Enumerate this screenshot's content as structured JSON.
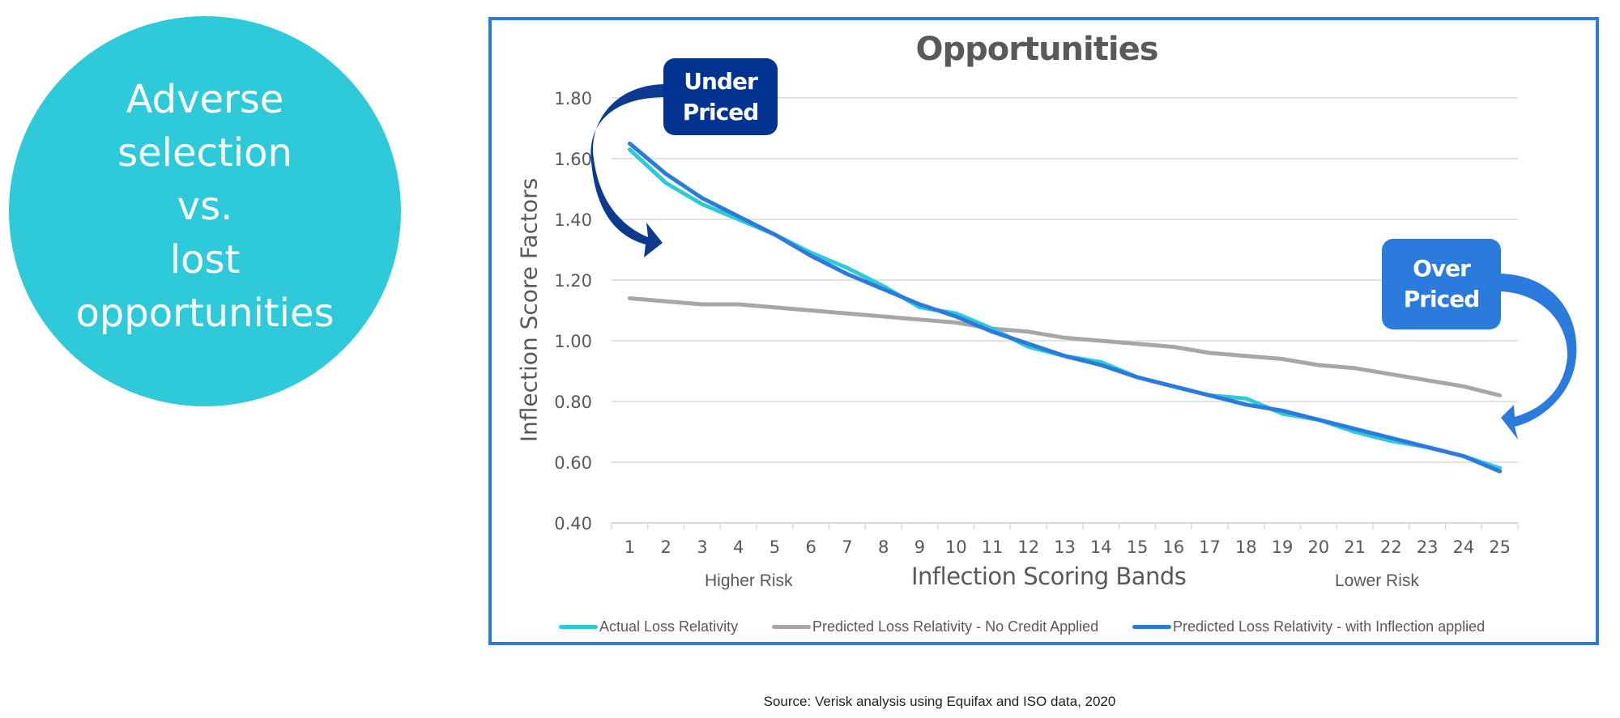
{
  "callout_circle": {
    "lines": [
      "Adverse",
      "selection",
      "vs.",
      "lost",
      "opportunities"
    ],
    "color": "#2ecad9"
  },
  "annotations": {
    "under_priced": [
      "Under",
      "Priced"
    ],
    "over_priced": [
      "Over",
      "Priced"
    ],
    "higher_risk": "Higher Risk",
    "lower_risk": "Lower Risk"
  },
  "source": "Source: Verisk analysis using Equifax and ISO data, 2020",
  "colors": {
    "frame": "#2b7bdd",
    "under_priced": "#013391",
    "over_priced": "#2b7bdd",
    "gridline": "#d9d9d9",
    "text": "#595959"
  },
  "chart_data": {
    "type": "line",
    "title": "Opportunities",
    "xlabel": "Inflection Scoring Bands",
    "ylabel": "Inflection Score Factors",
    "x": [
      1,
      2,
      3,
      4,
      5,
      6,
      7,
      8,
      9,
      10,
      11,
      12,
      13,
      14,
      15,
      16,
      17,
      18,
      19,
      20,
      21,
      22,
      23,
      24,
      25
    ],
    "ylim": [
      0.4,
      1.8
    ],
    "yticks": [
      "0.40",
      "0.60",
      "0.80",
      "1.00",
      "1.20",
      "1.40",
      "1.60",
      "1.80"
    ],
    "ytick_values": [
      0.4,
      0.6,
      0.8,
      1.0,
      1.2,
      1.4,
      1.6,
      1.8
    ],
    "grid": true,
    "legend_position": "bottom",
    "series": [
      {
        "name": "Actual Loss Relativity",
        "color": "#2ecad9",
        "values": [
          1.63,
          1.52,
          1.45,
          1.4,
          1.35,
          1.29,
          1.24,
          1.18,
          1.11,
          1.09,
          1.04,
          0.98,
          0.95,
          0.93,
          0.88,
          0.85,
          0.82,
          0.81,
          0.76,
          0.74,
          0.7,
          0.67,
          0.65,
          0.62,
          0.58
        ]
      },
      {
        "name": "Predicted Loss Relativity - No Credit Applied",
        "color": "#a9a6a6",
        "values": [
          1.14,
          1.13,
          1.12,
          1.12,
          1.11,
          1.1,
          1.09,
          1.08,
          1.07,
          1.06,
          1.04,
          1.03,
          1.01,
          1.0,
          0.99,
          0.98,
          0.96,
          0.95,
          0.94,
          0.92,
          0.91,
          0.89,
          0.87,
          0.85,
          0.82
        ]
      },
      {
        "name": "Predicted Loss Relativity - with Inflection applied",
        "color": "#2b7bdd",
        "values": [
          1.65,
          1.55,
          1.47,
          1.41,
          1.35,
          1.28,
          1.22,
          1.17,
          1.12,
          1.08,
          1.03,
          0.99,
          0.95,
          0.92,
          0.88,
          0.85,
          0.82,
          0.79,
          0.77,
          0.74,
          0.71,
          0.68,
          0.65,
          0.62,
          0.57
        ]
      }
    ]
  }
}
